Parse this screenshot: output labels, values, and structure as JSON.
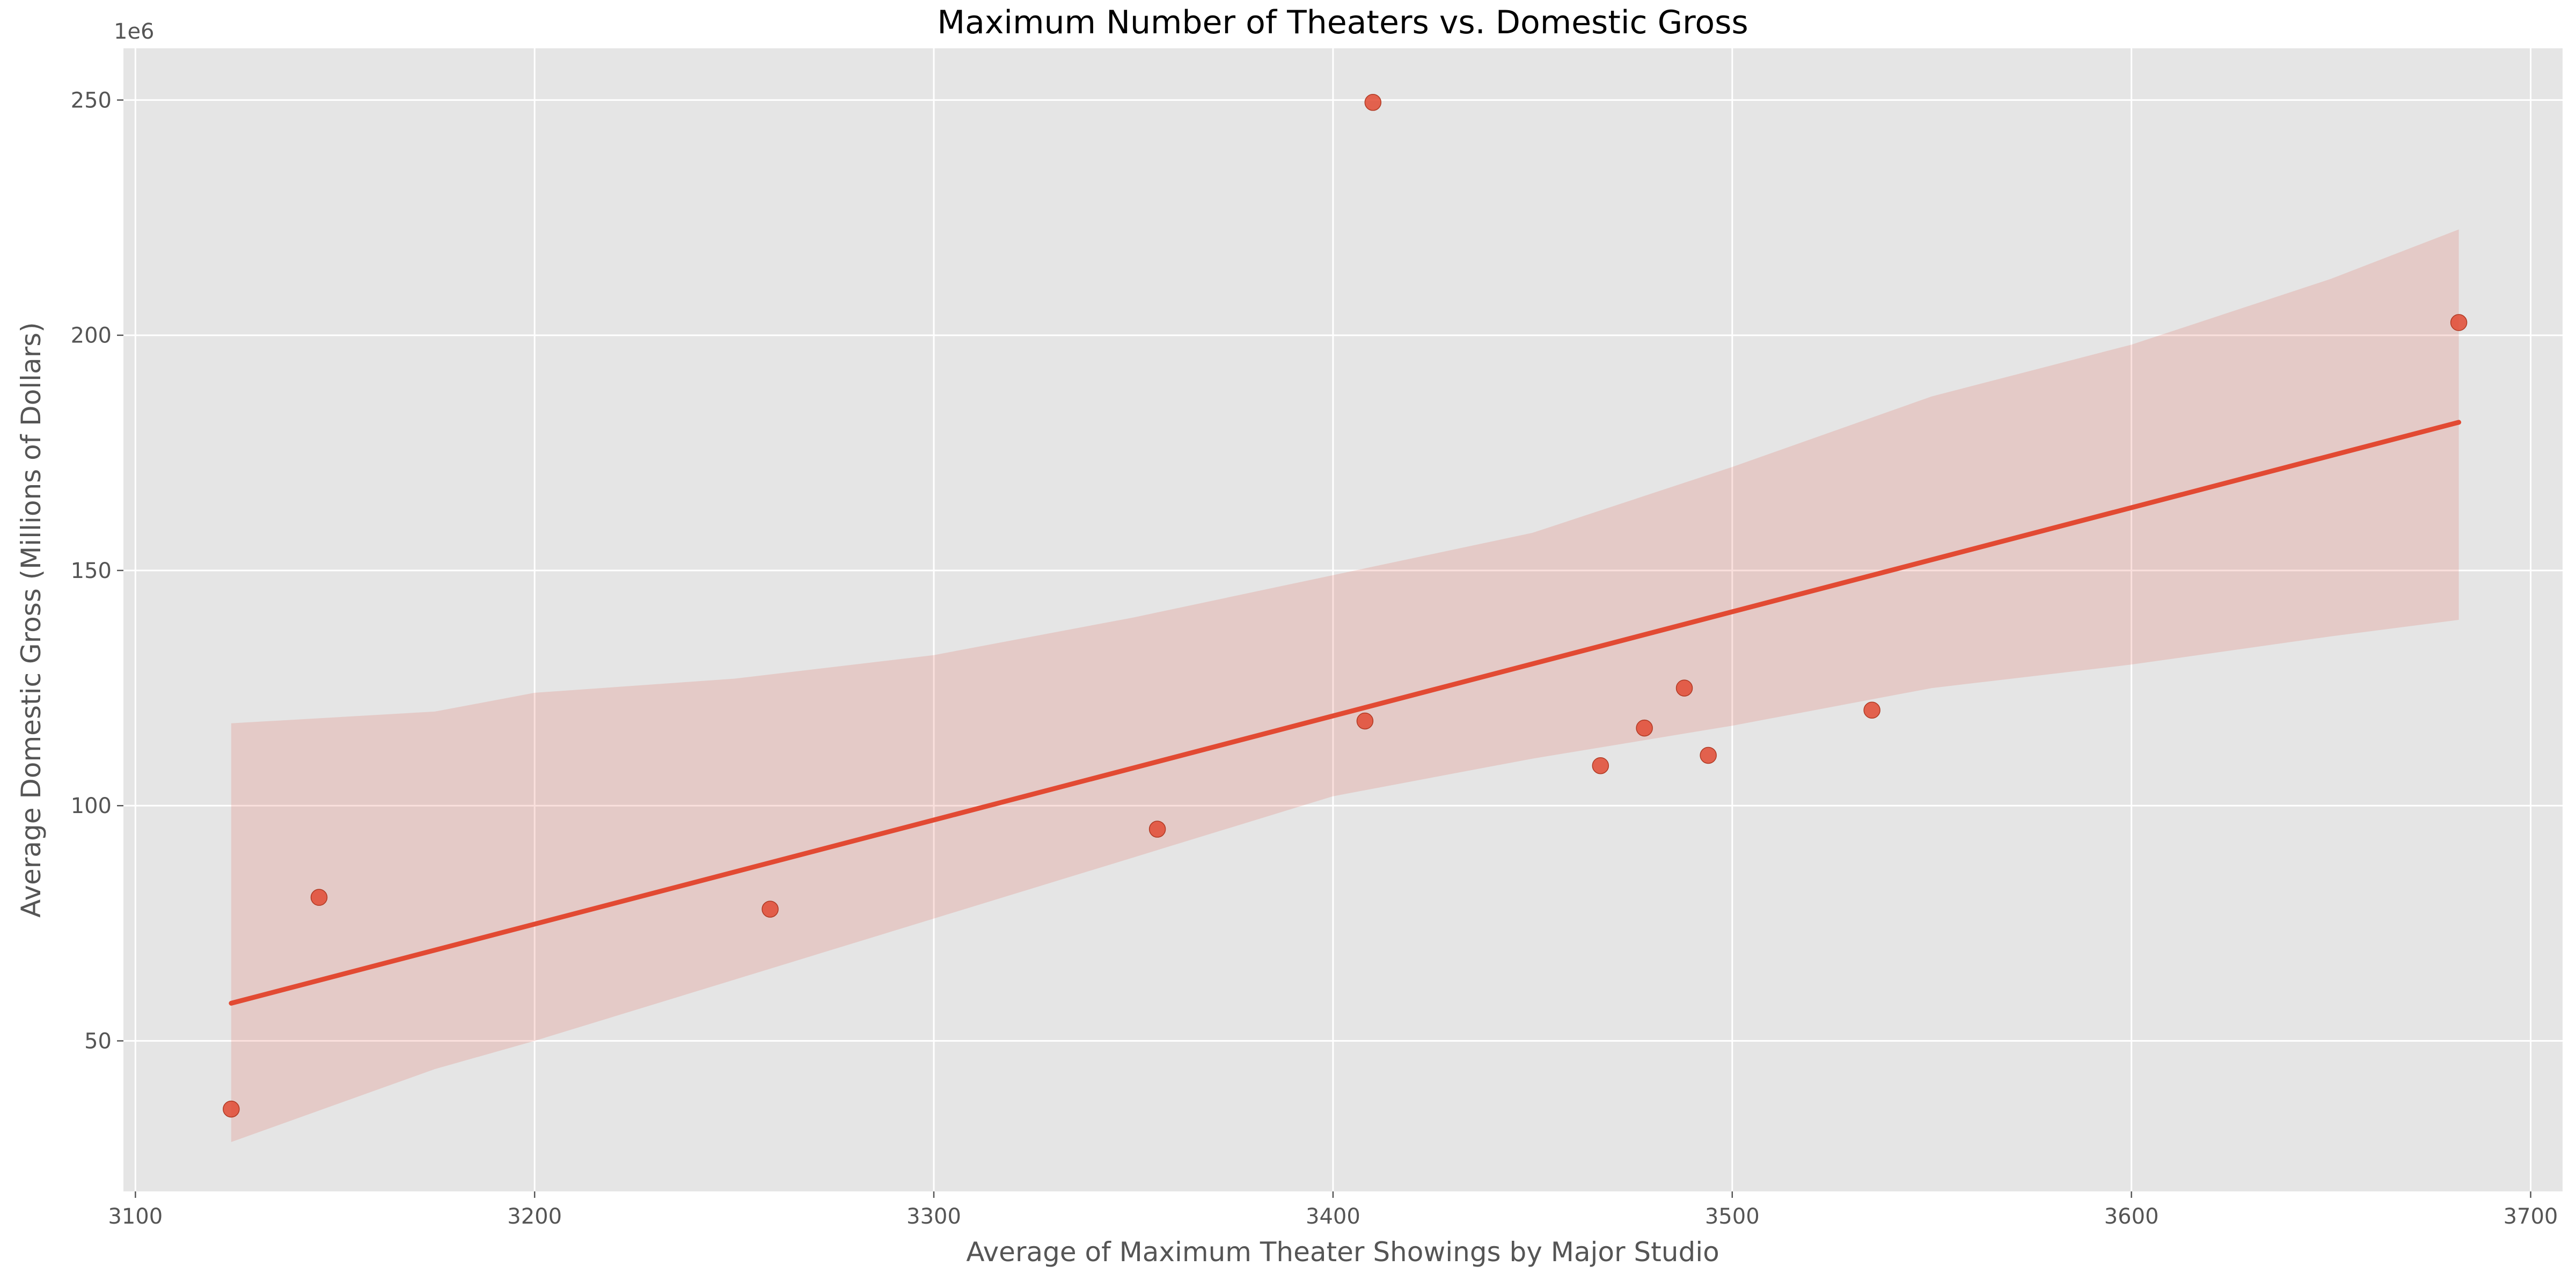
{
  "chart_data": {
    "type": "scatter",
    "title": "Maximum Number of Theaters vs. Domestic Gross",
    "xlabel": "Average of Maximum Theater Showings by Major Studio",
    "ylabel": "Average Domestic Gross (Millions of Dollars)",
    "y_offset_label": "1e6",
    "xlim": [
      3097,
      3708
    ],
    "ylim": [
      18000000,
      261000000
    ],
    "x_ticks": [
      3100,
      3200,
      3300,
      3400,
      3500,
      3600,
      3700
    ],
    "x_tick_labels": [
      "3100",
      "3200",
      "3300",
      "3400",
      "3500",
      "3600",
      "3700"
    ],
    "y_ticks": [
      50000000,
      100000000,
      150000000,
      200000000,
      250000000
    ],
    "y_tick_labels": [
      "50",
      "100",
      "150",
      "200",
      "250"
    ],
    "grid": true,
    "background_color": "#e5e5e5",
    "point_color": "#e24a33",
    "points": [
      {
        "x": 3124,
        "y": 35500000
      },
      {
        "x": 3146,
        "y": 80500000
      },
      {
        "x": 3259,
        "y": 78000000
      },
      {
        "x": 3356,
        "y": 95000000
      },
      {
        "x": 3408,
        "y": 118000000
      },
      {
        "x": 3410,
        "y": 249500000
      },
      {
        "x": 3467,
        "y": 108500000
      },
      {
        "x": 3478,
        "y": 116500000
      },
      {
        "x": 3488,
        "y": 125000000
      },
      {
        "x": 3494,
        "y": 110700000
      },
      {
        "x": 3535,
        "y": 120300000
      },
      {
        "x": 3682,
        "y": 202700000
      }
    ],
    "regression": {
      "x": [
        3124,
        3682
      ],
      "y": [
        58000000,
        181500000
      ]
    },
    "confidence_band": {
      "x": [
        3124,
        3175,
        3200,
        3250,
        3300,
        3350,
        3400,
        3450,
        3500,
        3550,
        3600,
        3650,
        3682
      ],
      "upper": [
        117500000,
        120000000,
        124000000,
        127000000,
        132000000,
        140000000,
        149000000,
        158000000,
        172000000,
        187000000,
        198000000,
        212000000,
        222500000
      ],
      "lower": [
        28500000,
        44000000,
        50000000,
        63000000,
        76000000,
        89000000,
        102000000,
        110000000,
        117000000,
        125000000,
        130000000,
        136000000,
        139500000
      ]
    }
  }
}
